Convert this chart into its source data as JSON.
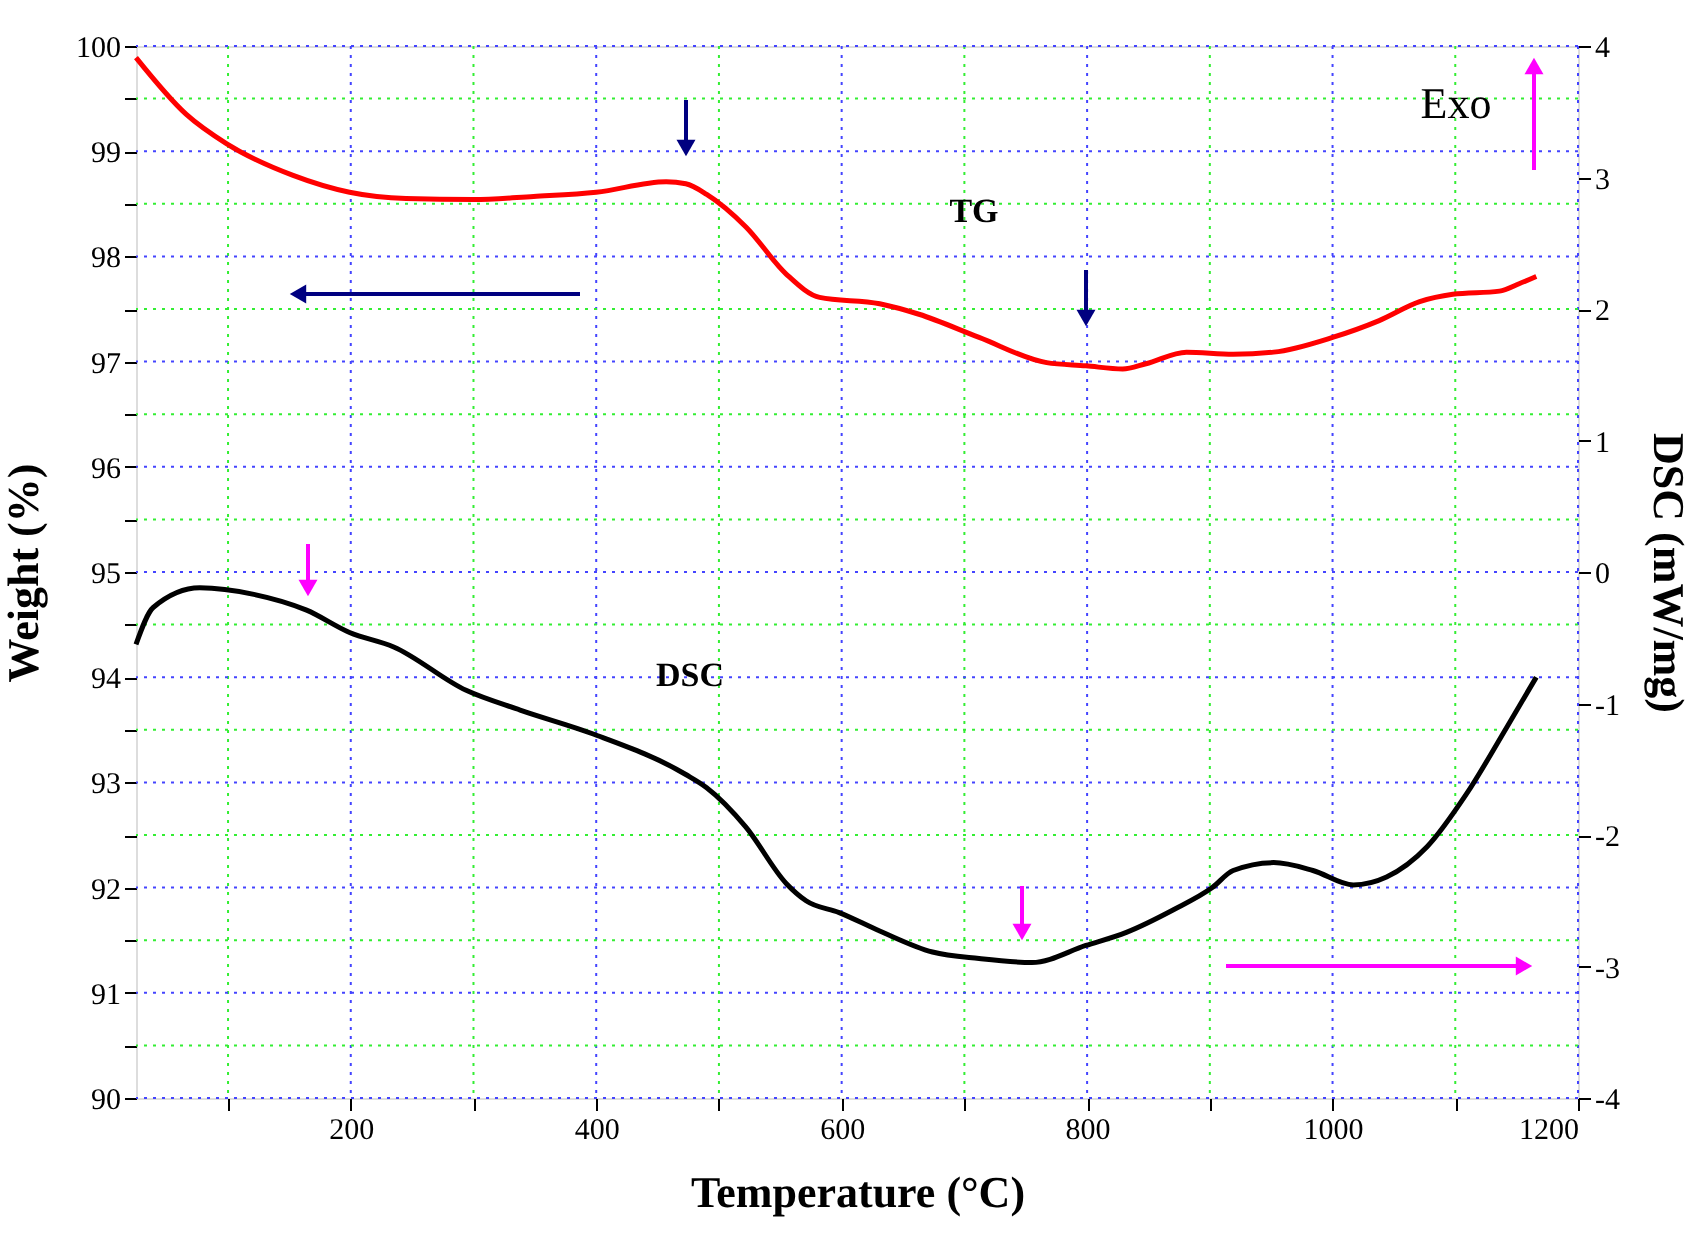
{
  "chart_data": {
    "type": "line",
    "xlabel": "Temperature (°C)",
    "ylabel": "Weight (%)",
    "y2label": "DSC (mW/mg)",
    "annotations": [
      "TG",
      "DSC",
      "Exo"
    ],
    "xlim": [
      25,
      1200
    ],
    "xticks": [
      {
        "value": 100,
        "label": null
      },
      200,
      {
        "value": 300,
        "label": null
      },
      400,
      {
        "value": 500,
        "label": null
      },
      600,
      {
        "value": 700,
        "label": null
      },
      800,
      {
        "value": 900,
        "label": null
      },
      1000,
      {
        "value": 1100,
        "label": null
      },
      1200
    ],
    "ylim": [
      90,
      100
    ],
    "yticks": [
      90,
      {
        "value": 90.5,
        "label": null
      },
      91,
      {
        "value": 91.5,
        "label": null
      },
      92,
      {
        "value": 92.5,
        "label": null
      },
      93,
      {
        "value": 93.5,
        "label": null
      },
      94,
      {
        "value": 94.5,
        "label": null
      },
      95,
      {
        "value": 95.5,
        "label": null
      },
      96,
      {
        "value": 96.5,
        "label": null
      },
      97,
      {
        "value": 97.5,
        "label": null
      },
      98,
      {
        "value": 98.5,
        "label": null
      },
      99,
      {
        "value": 99.5,
        "label": null
      },
      100
    ],
    "y2lim": [
      -4,
      4
    ],
    "y2ticks": [
      -4,
      -3,
      -2,
      -1,
      0,
      1,
      2,
      3,
      4
    ],
    "grid": true,
    "marker": "none",
    "line_style": "solid",
    "series": [
      {
        "color": "#ff0000",
        "x": [
          25,
          66,
          99,
          153,
          199,
          245,
          300,
          349,
          400,
          457,
          473,
          490,
          522,
          555,
          582,
          631,
          663,
          712,
          767,
          799,
          829,
          848,
          881,
          919,
          952,
          1000,
          1038,
          1071,
          1098,
          1136,
          1152,
          1166
        ],
        "values": [
          99.89,
          99.35,
          99.07,
          98.77,
          98.61,
          98.55,
          98.54,
          98.57,
          98.61,
          98.71,
          98.69,
          98.59,
          98.28,
          97.83,
          97.61,
          97.55,
          97.45,
          97.23,
          96.99,
          96.96,
          96.93,
          96.98,
          97.09,
          97.07,
          97.09,
          97.23,
          97.39,
          97.57,
          97.64,
          97.67,
          97.74,
          97.81
        ]
      },
      {
        "color": "#000000",
        "axis": "y2",
        "x": [
          25,
          39,
          77,
          121,
          164,
          199,
          235,
          294,
          338,
          397,
          473,
          490,
          522,
          555,
          571,
          598,
          631,
          674,
          712,
          755,
          799,
          832,
          870,
          902,
          919,
          952,
          984,
          1017,
          1044,
          1077,
          1109,
          1142,
          1166
        ],
        "values": [
          -0.55,
          -0.27,
          -0.12,
          -0.17,
          -0.29,
          -0.46,
          -0.57,
          -0.9,
          -1.05,
          -1.23,
          -1.54,
          -1.64,
          -1.94,
          -2.37,
          -2.5,
          -2.59,
          -2.73,
          -2.89,
          -2.94,
          -2.97,
          -2.84,
          -2.74,
          -2.57,
          -2.4,
          -2.27,
          -2.21,
          -2.27,
          -2.38,
          -2.32,
          -2.09,
          -1.69,
          -1.18,
          -0.8
        ]
      }
    ]
  }
}
